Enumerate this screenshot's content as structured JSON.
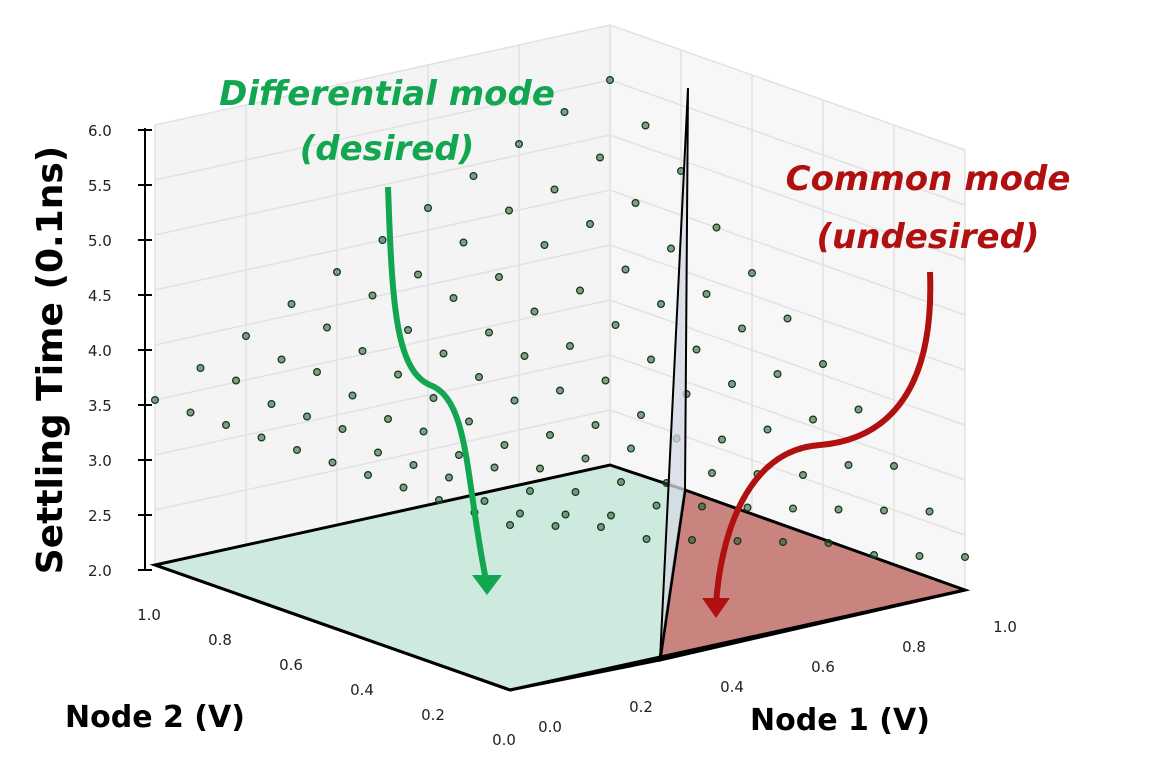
{
  "chart_data": {
    "type": "scatter",
    "projection": "3d",
    "zlabel": "Settling Time (0.1ns)",
    "xlabel": "Node 1 (V)",
    "ylabel": "Node 2 (V)",
    "zlim": [
      2.0,
      6.0
    ],
    "xlim": [
      0.0,
      1.0
    ],
    "ylim": [
      0.0,
      1.0
    ],
    "z_ticks": [
      "2.0",
      "2.5",
      "3.0",
      "3.5",
      "4.0",
      "4.5",
      "5.0",
      "5.5",
      "6.0"
    ],
    "x_ticks": [
      "0.0",
      "0.2",
      "0.4",
      "0.6",
      "0.8",
      "1.0"
    ],
    "y_ticks": [
      "1.0",
      "0.8",
      "0.6",
      "0.4",
      "0.2",
      "0.0"
    ],
    "grid": true,
    "node1_values": [
      0.0,
      0.1,
      0.2,
      0.3,
      0.4,
      0.5,
      0.6,
      0.7,
      0.8,
      0.9,
      1.0
    ],
    "node2_values": [
      0.0,
      0.1,
      0.2,
      0.3,
      0.4,
      0.5,
      0.6,
      0.7,
      0.8,
      0.9,
      1.0
    ],
    "settling_time": [
      [
        3.5,
        3.4,
        3.3,
        3.1,
        3.0,
        2.9,
        2.8,
        2.7,
        2.5,
        2.4,
        2.3
      ],
      [
        3.5,
        3.4,
        3.3,
        3.2,
        3.2,
        3.1,
        3.0,
        2.9,
        2.8,
        2.7,
        2.6
      ],
      [
        3.5,
        3.4,
        3.4,
        3.3,
        3.3,
        3.2,
        3.2,
        3.1,
        3.0,
        3.0,
        2.9
      ],
      [
        3.5,
        3.5,
        3.5,
        3.4,
        3.4,
        3.4,
        3.4,
        3.3,
        3.3,
        3.3,
        3.3
      ],
      [
        3.5,
        3.5,
        3.5,
        3.5,
        3.5,
        3.5,
        3.5,
        3.6,
        3.6,
        3.6,
        3.6
      ],
      [
        3.5,
        3.5,
        3.6,
        3.6,
        3.7,
        3.7,
        3.7,
        3.8,
        3.8,
        3.9,
        3.9
      ],
      [
        3.5,
        3.6,
        3.6,
        3.7,
        3.8,
        3.9,
        3.9,
        4.0,
        4.1,
        4.1,
        4.2
      ],
      [
        3.5,
        3.6,
        3.7,
        3.8,
        3.9,
        4.0,
        4.1,
        4.2,
        4.3,
        4.4,
        4.5
      ],
      [
        3.5,
        3.6,
        3.8,
        3.9,
        4.0,
        4.2,
        4.3,
        4.5,
        4.6,
        4.7,
        4.9
      ],
      [
        3.5,
        3.7,
        3.8,
        4.0,
        4.2,
        4.3,
        4.5,
        4.7,
        4.8,
        5.0,
        5.2
      ],
      [
        3.5,
        3.7,
        3.9,
        4.1,
        4.3,
        4.5,
        4.7,
        4.9,
        5.1,
        5.3,
        5.5
      ]
    ],
    "annotations": [
      {
        "line1": "Differential mode",
        "line2": "(desired)",
        "color": "#12a650"
      },
      {
        "line1": "Common mode",
        "line2": "(undesired)",
        "color": "#b01010"
      }
    ],
    "colors": {
      "points": "#1f5a2a",
      "diff_region": "#c9e8dc",
      "common_region": "#c06e6a",
      "divider": "#d4d9e4"
    }
  }
}
